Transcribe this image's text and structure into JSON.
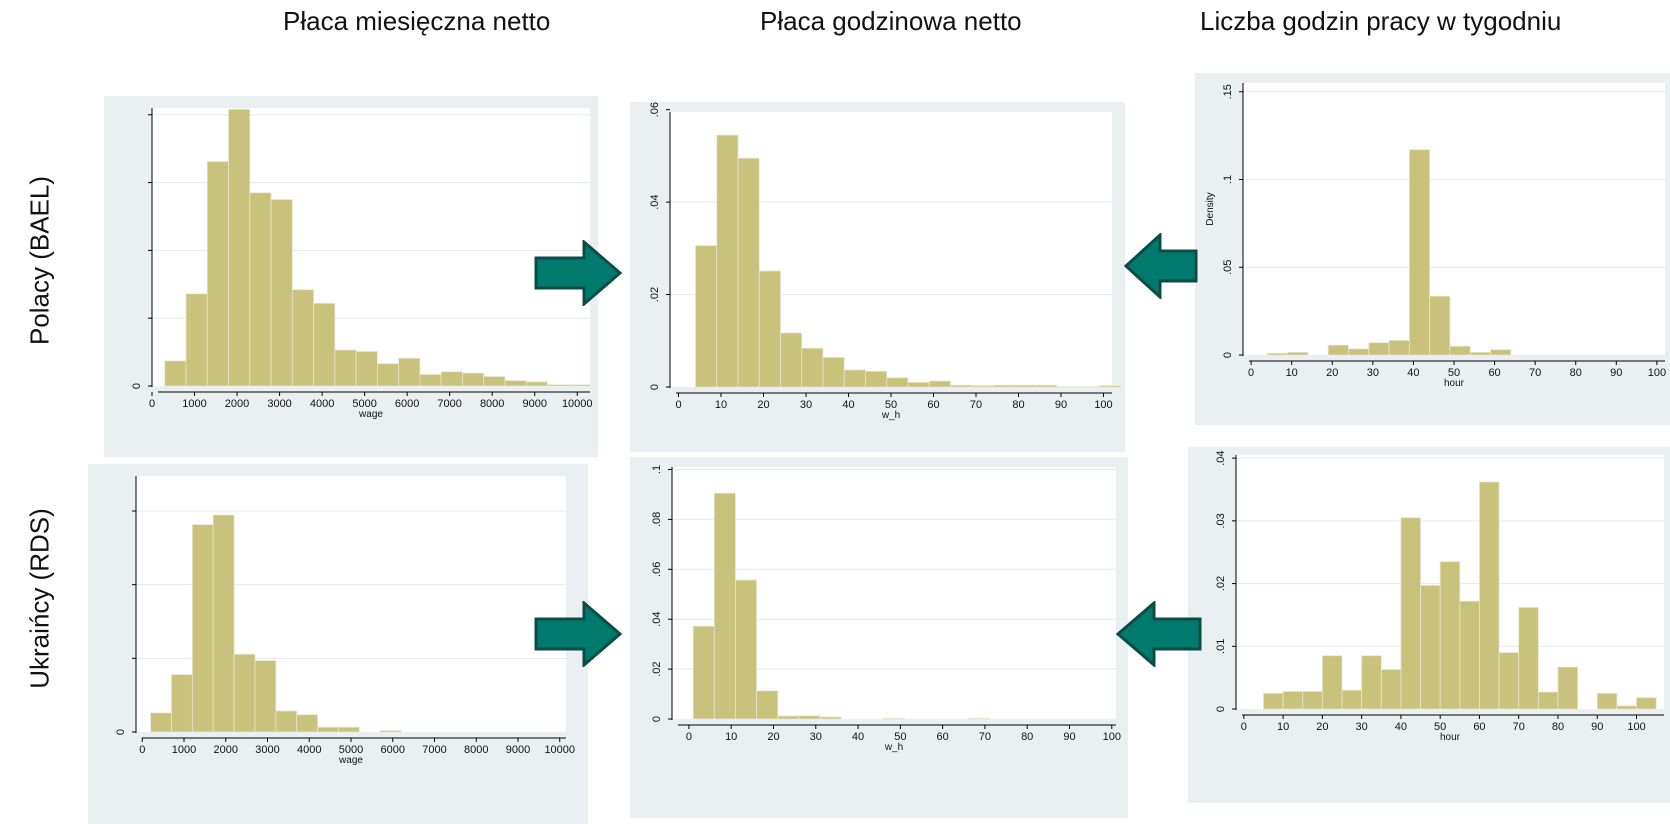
{
  "column_titles": [
    "Płaca miesięczna netto",
    "Płaca godzinowa netto",
    "Liczba godzin pracy w tygodniu"
  ],
  "row_titles": [
    "Polacy (BAEL)",
    "Ukraińcy  (RDS)"
  ],
  "colors": {
    "bar": "#c9c27c",
    "bar_edge": "#e8e6cf",
    "panel_bg": "#eaf0f2",
    "arrow": "#007a6c",
    "arrow_edge": "#0b4d45"
  },
  "icons": [
    "arrow-right-icon",
    "arrow-right-icon",
    "arrow-left-icon",
    "arrow-left-icon"
  ],
  "chart_data": [
    {
      "type": "histogram",
      "panel": "polacy-wage",
      "xlabel": "wage",
      "ylabel": "",
      "xlim": [
        0,
        10300
      ],
      "ylim": [
        0,
        0.00041
      ],
      "xticks": [
        0,
        1000,
        2000,
        3000,
        4000,
        5000,
        6000,
        7000,
        8000,
        9000,
        10000
      ],
      "xtick_labels": [
        "0",
        "1000",
        "2000",
        "3000",
        "4000",
        "5000",
        "6000",
        "7000",
        "8000",
        "9000",
        "10000"
      ],
      "yticks": [
        0,
        0.0001,
        0.0002,
        0.0003,
        0.0004
      ],
      "ytick_labels": [
        "0",
        "",
        "",
        "",
        ""
      ],
      "bin_start": 300,
      "bin_width": 500,
      "values": [
        3.7e-05,
        0.000136,
        0.000331,
        0.000408,
        0.000285,
        0.000275,
        0.000142,
        0.000122,
        5.3e-05,
        5.1e-05,
        3.3e-05,
        4.1e-05,
        1.7e-05,
        2.1e-05,
        1.9e-05,
        1.4e-05,
        8e-06,
        6e-06,
        2e-06,
        2e-06
      ]
    },
    {
      "type": "histogram",
      "panel": "polacy-w_h",
      "xlabel": "w_h",
      "ylabel": "",
      "xlim": [
        -2,
        102
      ],
      "ylim": [
        0,
        0.0595
      ],
      "xticks": [
        0,
        10,
        20,
        30,
        40,
        50,
        60,
        70,
        80,
        90,
        100
      ],
      "xtick_labels": [
        "0",
        "10",
        "20",
        "30",
        "40",
        "50",
        "60",
        "70",
        "80",
        "90",
        "100"
      ],
      "yticks": [
        0,
        0.02,
        0.04,
        0.06
      ],
      "ytick_labels": [
        "0",
        ".02",
        ".04",
        ".06"
      ],
      "bin_start": 4,
      "bin_width": 5,
      "values": [
        0.0306,
        0.0545,
        0.0495,
        0.0251,
        0.0117,
        0.0084,
        0.0064,
        0.0037,
        0.0034,
        0.002,
        0.001,
        0.0013,
        0.0004,
        0.0003,
        0.0004,
        0.0004,
        0.0004,
        0.0001,
        0.0001,
        0.0003
      ]
    },
    {
      "type": "histogram",
      "panel": "polacy-hour",
      "xlabel": "hour",
      "ylabel": "Density",
      "xlim": [
        -2,
        102
      ],
      "ylim": [
        0,
        0.155
      ],
      "xticks": [
        0,
        10,
        20,
        30,
        40,
        50,
        60,
        70,
        80,
        90,
        100
      ],
      "xtick_labels": [
        "0",
        "10",
        "20",
        "30",
        "40",
        "50",
        "60",
        "70",
        "80",
        "90",
        "100"
      ],
      "yticks": [
        0,
        0.05,
        0.1,
        0.15
      ],
      "ytick_labels": [
        "0",
        ".05",
        ".1",
        ".15"
      ],
      "bin_start": 4,
      "bin_width": 5,
      "values": [
        0.001,
        0.0015,
        0.0,
        0.0056,
        0.0035,
        0.007,
        0.0083,
        0.117,
        0.0335,
        0.005,
        0.0015,
        0.003,
        0.0,
        0.0,
        0.0,
        0.0,
        0.0,
        0.0,
        0.0,
        0.0
      ]
    },
    {
      "type": "histogram",
      "panel": "ukraincy-wage",
      "xlabel": "wage",
      "ylabel": "",
      "xlim": [
        -150,
        10150
      ],
      "ylim": [
        0,
        0.000695
      ],
      "xticks": [
        0,
        1000,
        2000,
        3000,
        4000,
        5000,
        6000,
        7000,
        8000,
        9000,
        10000
      ],
      "xtick_labels": [
        "0",
        "1000",
        "2000",
        "3000",
        "4000",
        "5000",
        "6000",
        "7000",
        "8000",
        "9000",
        "10000"
      ],
      "yticks": [
        0,
        0.0002,
        0.0004,
        0.0006
      ],
      "ytick_labels": [
        "0",
        "",
        "",
        ""
      ],
      "bin_start": 200,
      "bin_width": 500,
      "values": [
        5.2e-05,
        0.000156,
        0.000563,
        0.000589,
        0.000211,
        0.000194,
        5.7e-05,
        4.7e-05,
        1.3e-05,
        1.3e-05,
        0.0,
        4e-06,
        0.0,
        0.0,
        0.0,
        0.0,
        0.0,
        0.0,
        0.0,
        0.0
      ]
    },
    {
      "type": "histogram",
      "panel": "ukraincy-w_h",
      "xlabel": "w_h",
      "ylabel": "",
      "xlim": [
        -4,
        101
      ],
      "ylim": [
        0,
        0.101
      ],
      "xticks": [
        0,
        10,
        20,
        30,
        40,
        50,
        60,
        70,
        80,
        90,
        100
      ],
      "xtick_labels": [
        "0",
        "10",
        "20",
        "30",
        "40",
        "50",
        "60",
        "70",
        "80",
        "90",
        "100"
      ],
      "yticks": [
        0,
        0.02,
        0.04,
        0.06,
        0.08,
        0.1
      ],
      "ytick_labels": [
        "0",
        ".02",
        ".04",
        ".06",
        ".08",
        ".1"
      ],
      "bin_start": 1,
      "bin_width": 5,
      "values": [
        0.0372,
        0.0905,
        0.0557,
        0.0113,
        0.0012,
        0.0013,
        0.0008,
        0.0,
        0.0,
        0.0003,
        0.0,
        0.0,
        0.0,
        0.0003,
        0.0,
        0.0,
        0.0,
        0.0,
        0.0,
        0.0
      ]
    },
    {
      "type": "histogram",
      "panel": "ukraincy-hour",
      "xlabel": "hour",
      "ylabel": "",
      "xlim": [
        -2,
        107
      ],
      "ylim": [
        0,
        0.0405
      ],
      "xticks": [
        0,
        10,
        20,
        30,
        40,
        50,
        60,
        70,
        80,
        90,
        100
      ],
      "xtick_labels": [
        "0",
        "10",
        "20",
        "30",
        "40",
        "50",
        "60",
        "70",
        "80",
        "90",
        "100"
      ],
      "yticks": [
        0,
        0.01,
        0.02,
        0.03,
        0.04
      ],
      "ytick_labels": [
        "0",
        ".01",
        ".02",
        ".03",
        ".04"
      ],
      "bin_start": 5,
      "bin_width": 5,
      "values": [
        0.0025,
        0.0028,
        0.0028,
        0.0085,
        0.003,
        0.0085,
        0.0063,
        0.0305,
        0.0197,
        0.0235,
        0.0172,
        0.0362,
        0.009,
        0.0162,
        0.0027,
        0.0067,
        0.0,
        0.0025,
        0.0005,
        0.0018
      ]
    }
  ]
}
